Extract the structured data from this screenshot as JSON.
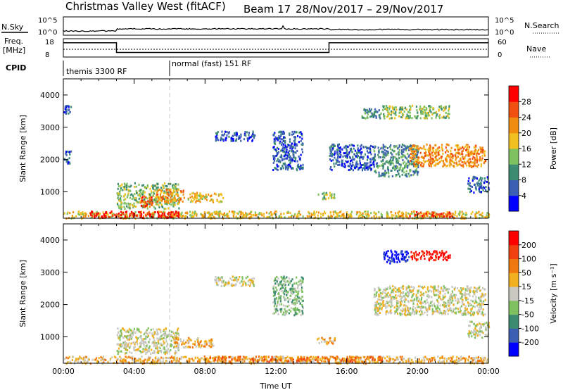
{
  "header": {
    "station": "Christmas Valley West (fitACF)",
    "beam": "Beam 17",
    "dates": "28/Nov/2017 – 29/Nov/2017"
  },
  "noise_panel": {
    "left_label": "N.Sky",
    "right_label": "N.Search",
    "left_ticks": [
      "10^5",
      "10^0"
    ],
    "right_ticks": [
      "10^5",
      "10^0"
    ]
  },
  "freq_panel": {
    "left_label_1": "Freq.",
    "left_label_2": "[MHz]",
    "right_label": "Nave",
    "left_ticks": [
      "18",
      "8"
    ],
    "right_ticks": [
      "60",
      "0"
    ],
    "freq_steps": [
      {
        "start_h": 0,
        "end_h": 3,
        "level": 0.78
      },
      {
        "start_h": 3,
        "end_h": 15,
        "level": 0.25
      },
      {
        "start_h": 15,
        "end_h": 24,
        "level": 0.78
      }
    ]
  },
  "cpid": {
    "label": "CPID",
    "modes": [
      {
        "name": "themis 3300 RF",
        "start_h": 0
      },
      {
        "name": "normal (fast) 151 RF",
        "start_h": 6
      }
    ]
  },
  "chart_data": [
    {
      "type": "heatmap",
      "parameter": "power",
      "ylabel": "Slant Range [km]",
      "ylim": [
        180,
        4500
      ],
      "yticks": [
        1000,
        2000,
        3000,
        4000
      ],
      "xlim_hours": [
        0,
        24
      ],
      "colorbar": {
        "label": "Power [dB]",
        "ticks": [
          "28",
          "24",
          "20",
          "16",
          "12",
          "8",
          "4"
        ],
        "colors": [
          "#0000ff",
          "#3c5fb4",
          "#3d8c72",
          "#7fc060",
          "#f0c020",
          "#f08c10",
          "#f05010",
          "#ff0000"
        ]
      },
      "regions": [
        {
          "t0": 0.0,
          "t1": 24.0,
          "r0": 200,
          "r1": 420,
          "c": 4
        },
        {
          "t0": 1.5,
          "t1": 6.5,
          "r0": 220,
          "r1": 420,
          "c": 7
        },
        {
          "t0": 19.5,
          "t1": 22.0,
          "r0": 250,
          "r1": 400,
          "c": 6
        },
        {
          "t0": 3.0,
          "t1": 6.5,
          "r0": 500,
          "r1": 1300,
          "c": 3
        },
        {
          "t0": 4.3,
          "t1": 5.0,
          "r0": 550,
          "r1": 900,
          "c": 6
        },
        {
          "t0": 5.2,
          "t1": 6.8,
          "r0": 700,
          "r1": 1100,
          "c": 5
        },
        {
          "t0": 7.0,
          "t1": 9.0,
          "r0": 700,
          "r1": 1000,
          "c": 4
        },
        {
          "t0": 14.3,
          "t1": 15.3,
          "r0": 800,
          "r1": 1000,
          "c": 3
        },
        {
          "t0": 8.5,
          "t1": 10.8,
          "r0": 2600,
          "r1": 2900,
          "c": 1
        },
        {
          "t0": 11.8,
          "t1": 13.5,
          "r0": 1700,
          "r1": 2900,
          "c": 1
        },
        {
          "t0": 15.0,
          "t1": 17.5,
          "r0": 1700,
          "r1": 2500,
          "c": 1
        },
        {
          "t0": 16.8,
          "t1": 18.0,
          "r0": 3300,
          "r1": 3600,
          "c": 2
        },
        {
          "t0": 18.0,
          "t1": 21.8,
          "r0": 3300,
          "r1": 3700,
          "c": 3
        },
        {
          "t0": 17.5,
          "t1": 20.0,
          "r0": 1500,
          "r1": 2500,
          "c": 2
        },
        {
          "t0": 19.5,
          "t1": 23.8,
          "r0": 1800,
          "r1": 2500,
          "c": 5
        },
        {
          "t0": 22.8,
          "t1": 24.0,
          "r0": 1000,
          "r1": 1500,
          "c": 1
        },
        {
          "t0": 0.0,
          "t1": 0.4,
          "r0": 3400,
          "r1": 3700,
          "c": 1
        },
        {
          "t0": 0.0,
          "t1": 0.4,
          "r0": 1900,
          "r1": 2300,
          "c": 1
        }
      ]
    },
    {
      "type": "heatmap",
      "parameter": "velocity",
      "ylabel": "Slant Range [km]",
      "xlabel": "Time UT",
      "ylim": [
        180,
        4500
      ],
      "yticks": [
        1000,
        2000,
        3000,
        4000
      ],
      "xlim_hours": [
        0,
        24
      ],
      "xticks": [
        "00:00",
        "04:00",
        "08:00",
        "12:00",
        "16:00",
        "20:00",
        "00:00"
      ],
      "colorbar": {
        "label": "Velocity [m s⁻¹]",
        "ticks": [
          "200",
          "100",
          "50",
          "15",
          "-15",
          "-50",
          "-100",
          "-200"
        ],
        "colors": [
          "#0000ff",
          "#3c5fb4",
          "#3d8c72",
          "#7fc060",
          "#c8c8c0",
          "#f0b020",
          "#f07810",
          "#f04010",
          "#ff0000"
        ]
      },
      "regions": [
        {
          "t0": 0.0,
          "t1": 24.0,
          "r0": 200,
          "r1": 420,
          "c": 5
        },
        {
          "t0": 8.0,
          "t1": 18.0,
          "r0": 250,
          "r1": 420,
          "c": 6
        },
        {
          "t0": 3.0,
          "t1": 6.5,
          "r0": 500,
          "r1": 1300,
          "c": 4
        },
        {
          "t0": 6.2,
          "t1": 8.5,
          "r0": 700,
          "r1": 1000,
          "c": 5
        },
        {
          "t0": 14.3,
          "t1": 15.3,
          "r0": 800,
          "r1": 1000,
          "c": 5
        },
        {
          "t0": 8.5,
          "t1": 10.8,
          "r0": 2600,
          "r1": 2900,
          "c": 4
        },
        {
          "t0": 11.8,
          "t1": 13.5,
          "r0": 1700,
          "r1": 2900,
          "c": 3
        },
        {
          "t0": 18.0,
          "t1": 19.5,
          "r0": 3300,
          "r1": 3700,
          "c": 0
        },
        {
          "t0": 19.6,
          "t1": 21.8,
          "r0": 3400,
          "r1": 3700,
          "c": 8
        },
        {
          "t0": 17.5,
          "t1": 23.8,
          "r0": 1700,
          "r1": 2600,
          "c": 4
        },
        {
          "t0": 22.8,
          "t1": 24.0,
          "r0": 1000,
          "r1": 1500,
          "c": 4
        }
      ]
    }
  ]
}
